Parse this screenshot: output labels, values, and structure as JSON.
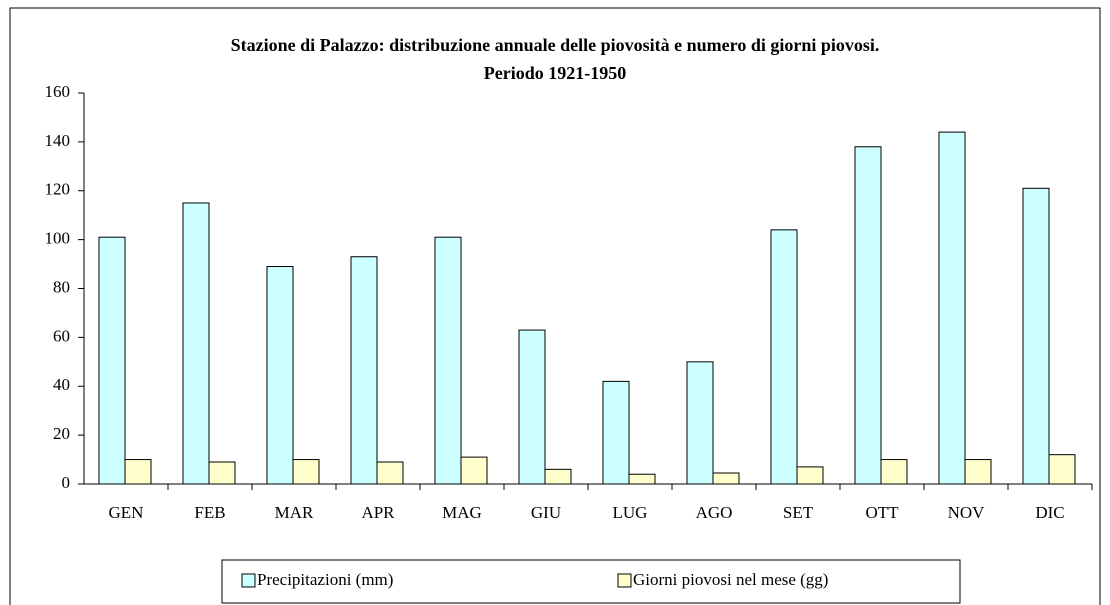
{
  "chart_data": {
    "type": "bar",
    "title": [
      "Stazione di Palazzo: distribuzione annuale delle piovosità e numero di giorni piovosi.",
      "Periodo 1921-1950"
    ],
    "categories": [
      "GEN",
      "FEB",
      "MAR",
      "APR",
      "MAG",
      "GIU",
      "LUG",
      "AGO",
      "SET",
      "OTT",
      "NOV",
      "DIC"
    ],
    "series": [
      {
        "name": "Precipitazioni (mm)",
        "color": "#ccffff",
        "values": [
          101,
          115,
          89,
          93,
          101,
          63,
          42,
          50,
          104,
          138,
          144,
          121
        ]
      },
      {
        "name": "Giorni piovosi nel mese (gg)",
        "color": "#ffffcc",
        "values": [
          10,
          9,
          10,
          9,
          11,
          6,
          4,
          4.5,
          7,
          10,
          10,
          12
        ]
      }
    ],
    "ylim": [
      0,
      160
    ],
    "yticks": [
      0,
      20,
      40,
      60,
      80,
      100,
      120,
      140,
      160
    ],
    "grid": false,
    "legend": "bottom"
  }
}
